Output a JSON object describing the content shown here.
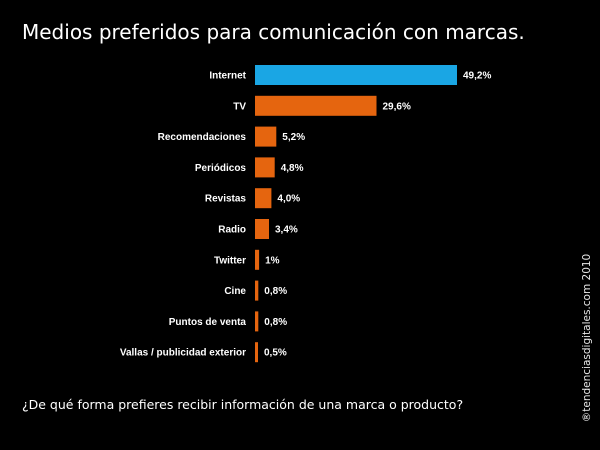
{
  "title": "Medios preferidos para comunicación con marcas.",
  "subtitle": "¿De qué forma prefieres recibir información de una marca o producto?",
  "credit": "®tendenciasdigitales.com 2010",
  "colors": {
    "background": "#000000",
    "highlight_bar": "#1aa6e4",
    "bar": "#e5650f",
    "text": "#ffffff"
  },
  "chart_data": {
    "type": "bar",
    "orientation": "horizontal",
    "categories": [
      "Internet",
      "TV",
      "Recomendaciones",
      "Periódicos",
      "Revistas",
      "Radio",
      "Twitter",
      "Cine",
      "Puntos de venta",
      "Vallas / publicidad exterior"
    ],
    "values": [
      49.2,
      29.6,
      5.2,
      4.8,
      4.0,
      3.4,
      1.0,
      0.8,
      0.8,
      0.5
    ],
    "value_labels": [
      "49,2%",
      "29,6%",
      "5,2%",
      "4,8%",
      "4,0%",
      "3,4%",
      "1%",
      "0,8%",
      "0,8%",
      "0,5%"
    ],
    "highlighted_category": "Internet",
    "xlim": [
      0,
      49.2
    ],
    "grid": false,
    "legend": "none"
  }
}
